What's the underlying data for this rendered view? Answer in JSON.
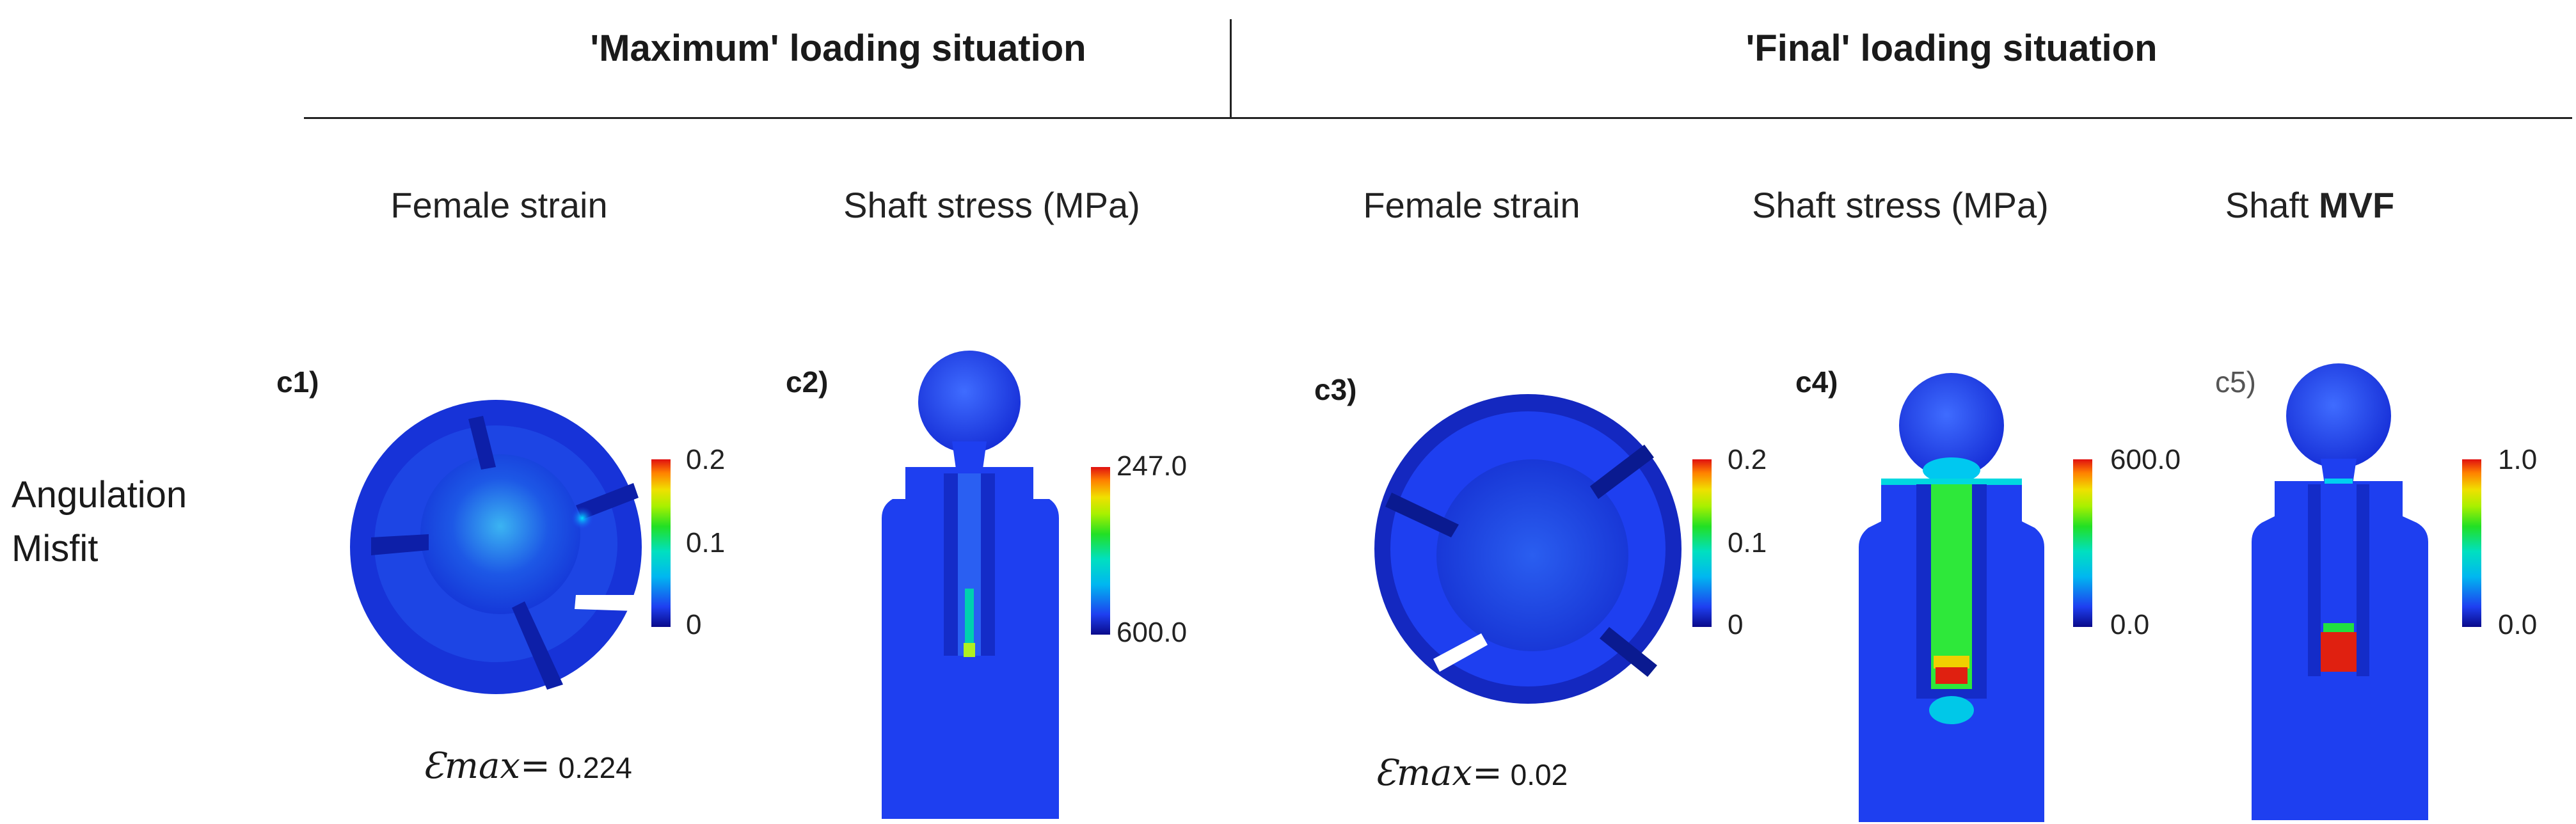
{
  "header": {
    "group_max": "'Maximum' loading situation",
    "group_final": "'Final' loading situation"
  },
  "columns": [
    {
      "label": "Female strain"
    },
    {
      "label": "Shaft stress (MPa)"
    },
    {
      "label": "Female strain"
    },
    {
      "label": "Shaft stress (MPa)"
    },
    {
      "label_prefix": "Shaft ",
      "label_bold": "MVF"
    }
  ],
  "row": {
    "line1": "Angulation",
    "line2": "Misfit"
  },
  "panels": [
    {
      "label": "c1)",
      "cb_top": "0.2",
      "cb_mid": "0.1",
      "cb_bot": "0",
      "emax_symbol": "Ɛmax=",
      "emax_value": "0.224"
    },
    {
      "label": "c2)",
      "cb_top": "247.0",
      "cb_bot": "600.0"
    },
    {
      "label": "c3)",
      "cb_top": "0.2",
      "cb_mid": "0.1",
      "cb_bot": "0",
      "emax_symbol": "Ɛmax=",
      "emax_value": "0.02"
    },
    {
      "label": "c4)",
      "cb_top": "600.0",
      "cb_bot": "0.0"
    },
    {
      "label": "c5)",
      "cb_top": "1.0",
      "cb_bot": "0.0"
    }
  ],
  "colors": {
    "model_blue": "#1e3ff0",
    "dark_blue": "#0a1fb8"
  }
}
